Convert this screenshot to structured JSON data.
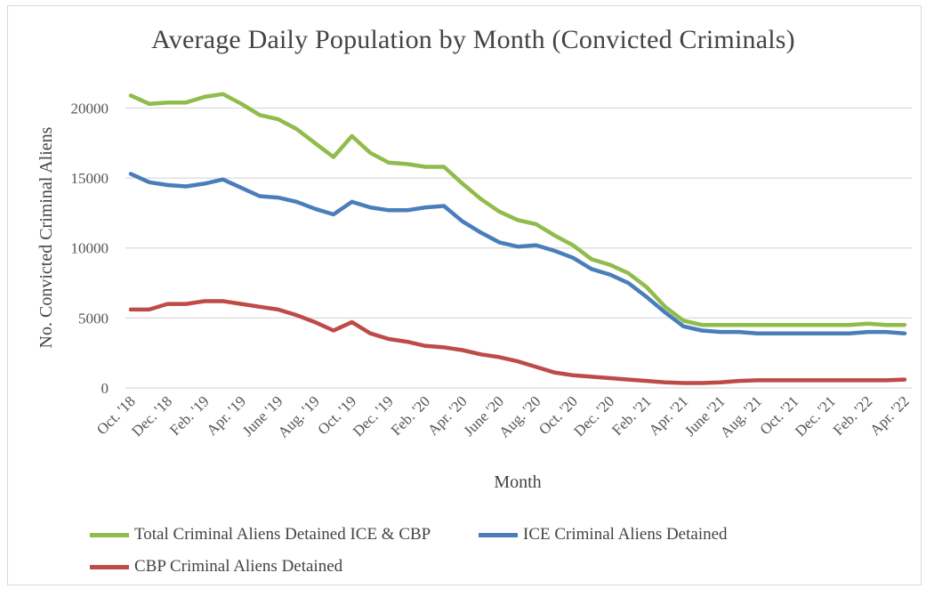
{
  "chart_data": {
    "type": "line",
    "title": "Average Daily Population by Month (Convicted Criminals)",
    "xlabel": "Month",
    "ylabel": "No. Convicted Criminal Aliens",
    "ylim": [
      0,
      22000
    ],
    "yticks": [
      "0",
      "5000",
      "10000",
      "15000",
      "20000"
    ],
    "ytick_values": [
      0,
      5000,
      10000,
      15000,
      20000
    ],
    "grid": "horizontal",
    "legend_position": "bottom",
    "x": [
      "Oct. '18",
      "Nov. '18",
      "Dec. '18",
      "Jan. '19",
      "Feb. '19",
      "Mar. '19",
      "Apr. '19",
      "May '19",
      "June '19",
      "July '19",
      "Aug. '19",
      "Sep. '19",
      "Oct. '19",
      "Nov. '19",
      "Dec. '19",
      "Jan. '20",
      "Feb. '20",
      "Mar. '20",
      "Apr. '20",
      "May '20",
      "June '20",
      "July '20",
      "Aug. '20",
      "Sep. '20",
      "Oct. '20",
      "Nov. '20",
      "Dec. '20",
      "Jan. '21",
      "Feb. '21",
      "Mar. '21",
      "Apr. '21",
      "May '21",
      "June '21",
      "July '21",
      "Aug. '21",
      "Sep. '21",
      "Oct. '21",
      "Nov. '21",
      "Dec. '21",
      "Jan. '22",
      "Feb. '22",
      "Mar. '22",
      "Apr. '22"
    ],
    "xtick_labels": [
      "Oct. '18",
      "Dec. '18",
      "Feb. '19",
      "Apr. '19",
      "June '19",
      "Aug. '19",
      "Oct. '19",
      "Dec. '19",
      "Feb. '20",
      "Apr. '20",
      "June '20",
      "Aug. '20",
      "Oct. '20",
      "Dec. '20",
      "Feb. '21",
      "Apr. '21",
      "June '21",
      "Aug. '21",
      "Oct. '21",
      "Dec. '21",
      "Feb. '22",
      "Apr. '22"
    ],
    "series": [
      {
        "name": "Total Criminal Aliens Detained ICE & CBP",
        "color": "#8fbc4a",
        "values": [
          20900,
          20300,
          20400,
          20400,
          20800,
          21000,
          20300,
          19500,
          19200,
          18500,
          17500,
          16500,
          18000,
          16800,
          16100,
          16000,
          15800,
          15800,
          14600,
          13500,
          12600,
          12000,
          11700,
          10900,
          10200,
          9200,
          8800,
          8200,
          7200,
          5800,
          4800,
          4500,
          4500,
          4500,
          4500,
          4500,
          4500,
          4500,
          4500,
          4500,
          4600,
          4500,
          4500
        ]
      },
      {
        "name": "ICE Criminal Aliens Detained",
        "color": "#4a7ebb",
        "values": [
          15300,
          14700,
          14500,
          14400,
          14600,
          14900,
          14300,
          13700,
          13600,
          13300,
          12800,
          12400,
          13300,
          12900,
          12700,
          12700,
          12900,
          13000,
          11900,
          11100,
          10400,
          10100,
          10200,
          9800,
          9300,
          8500,
          8100,
          7500,
          6500,
          5400,
          4400,
          4100,
          4000,
          4000,
          3900,
          3900,
          3900,
          3900,
          3900,
          3900,
          4000,
          4000,
          3900
        ]
      },
      {
        "name": "CBP Criminal Aliens Detained",
        "color": "#be4b48",
        "values": [
          5600,
          5600,
          6000,
          6000,
          6200,
          6200,
          6000,
          5800,
          5600,
          5200,
          4700,
          4100,
          4700,
          3900,
          3500,
          3300,
          3000,
          2900,
          2700,
          2400,
          2200,
          1900,
          1500,
          1100,
          900,
          800,
          700,
          600,
          500,
          400,
          350,
          350,
          400,
          500,
          550,
          550,
          550,
          550,
          550,
          550,
          550,
          550,
          600
        ]
      }
    ]
  }
}
